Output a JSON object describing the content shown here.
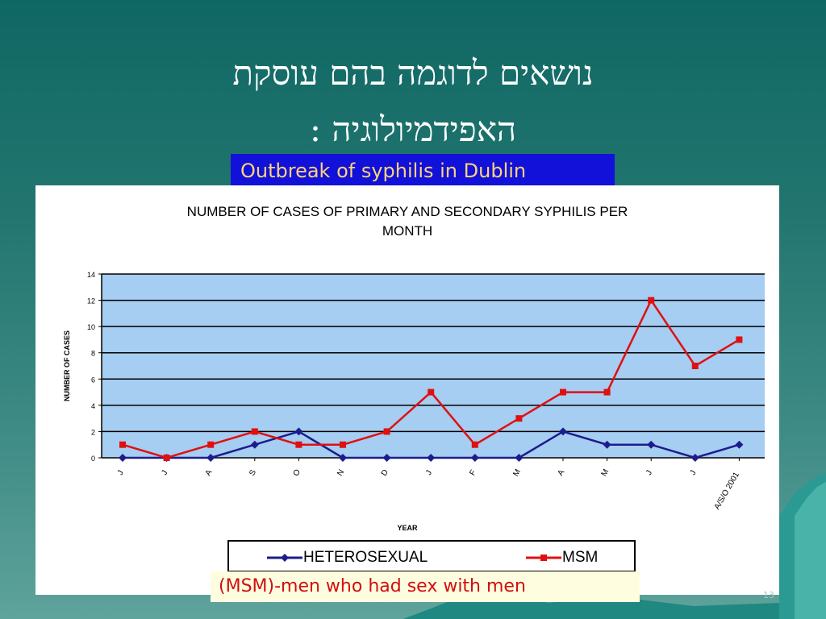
{
  "slide": {
    "title_line_1": "נושאים לדוגמה בהם עוסקת",
    "title_line_2": "האפידמיולוגיה :",
    "subtitle": "Outbreak of syphilis in Dublin",
    "note": "(MSM)-men who had sex with men",
    "page_number": "13"
  },
  "colors": {
    "background": "#1f736d",
    "subtitle_bg": "#1111d9",
    "subtitle_text": "#ffd27a",
    "plot_bg": "#a6cdf2",
    "heterosexual": "#1c1c8c",
    "msm": "#e01010",
    "note_text": "#d01010"
  },
  "chart_data": {
    "type": "line",
    "title": "NUMBER OF CASES OF PRIMARY AND SECONDARY SYPHILIS PER MONTH",
    "xlabel": "YEAR",
    "ylabel": "NUMBER OF CASES",
    "categories": [
      "J",
      "J",
      "A",
      "S",
      "O",
      "N",
      "D",
      "J",
      "F",
      "M",
      "A",
      "M",
      "J",
      "J",
      "A/S/O 2001"
    ],
    "y_ticks": [
      "0",
      "2",
      "4",
      "6",
      "8",
      "10",
      "12",
      "14"
    ],
    "ylim": [
      0,
      14
    ],
    "grid": "horizontal",
    "legend_position": "bottom",
    "series": [
      {
        "name": "HETEROSEXUAL",
        "color": "#1c1c8c",
        "marker": "diamond",
        "values": [
          0,
          0,
          0,
          1,
          2,
          0,
          0,
          0,
          0,
          0,
          2,
          1,
          1,
          0,
          1
        ]
      },
      {
        "name": "MSM",
        "color": "#e01010",
        "marker": "square",
        "values": [
          1,
          0,
          1,
          2,
          1,
          1,
          2,
          5,
          1,
          3,
          5,
          5,
          12,
          7,
          9
        ]
      }
    ]
  }
}
